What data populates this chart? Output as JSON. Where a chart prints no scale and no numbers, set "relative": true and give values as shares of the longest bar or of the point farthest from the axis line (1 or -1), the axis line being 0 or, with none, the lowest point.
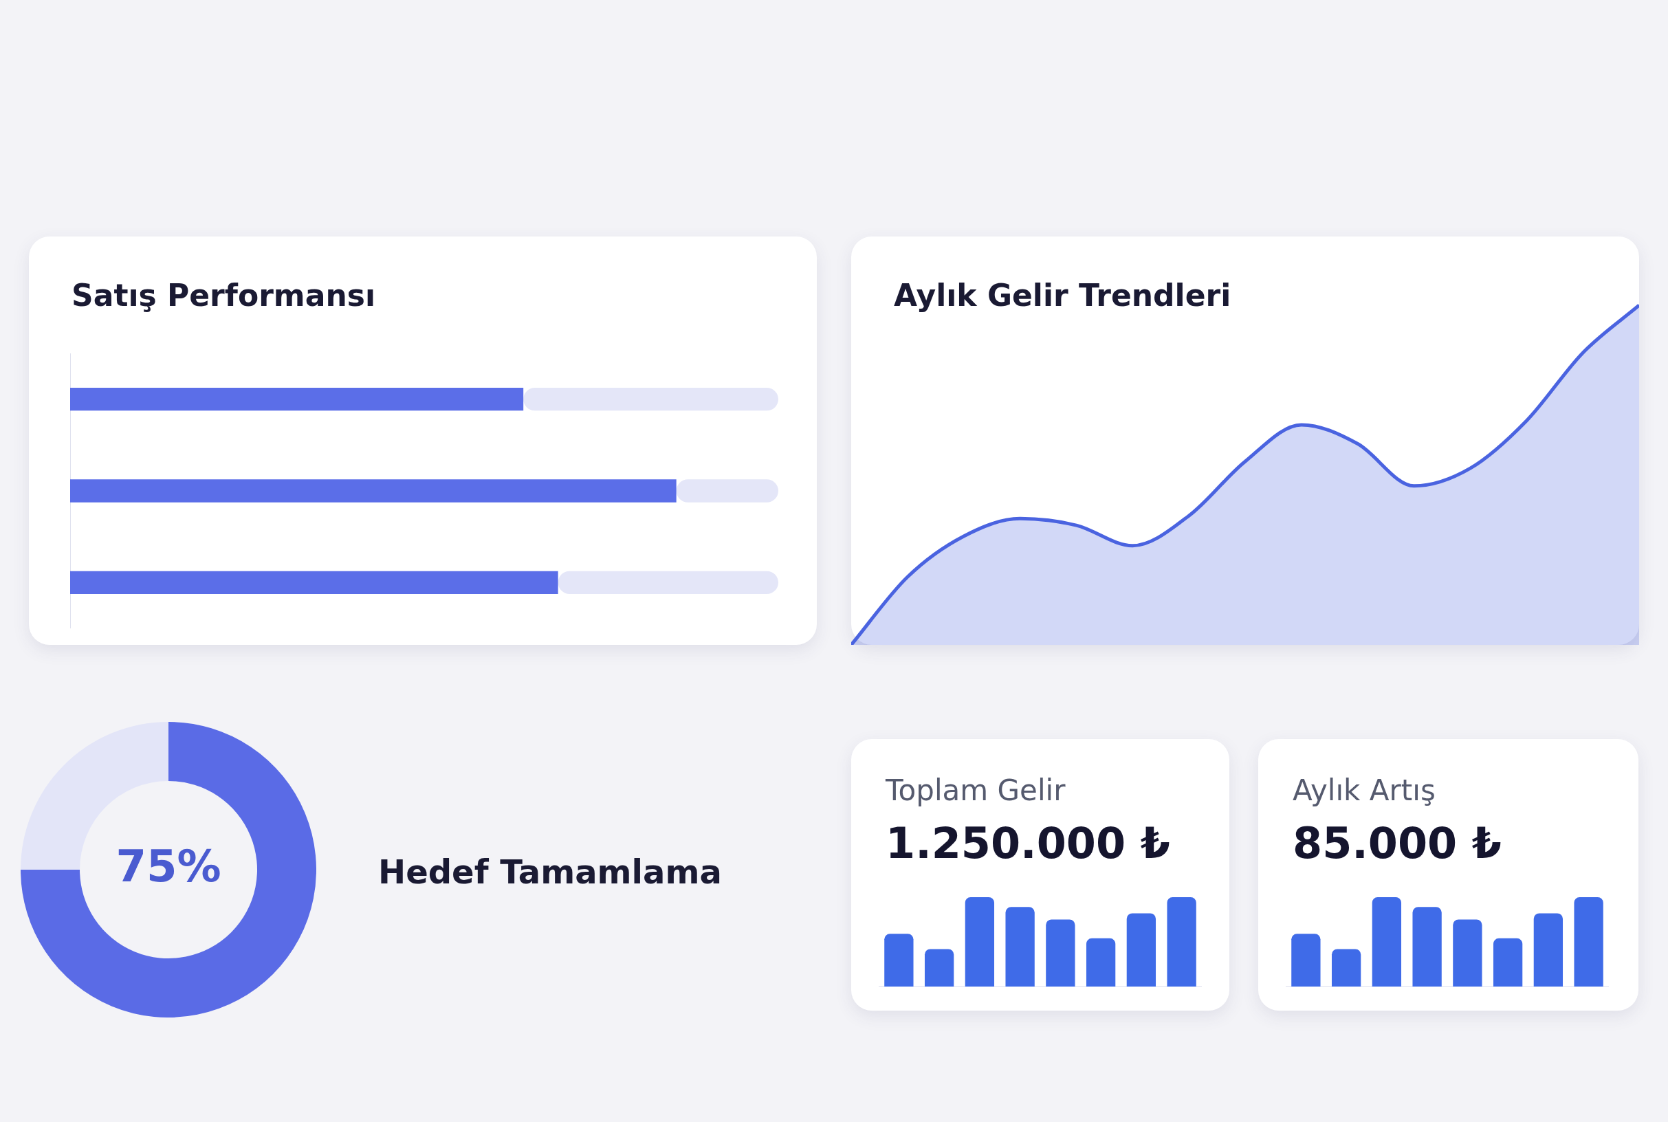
{
  "chart_data": [
    {
      "type": "bar",
      "title": "Satış Performansı",
      "orientation": "horizontal",
      "stacked": true,
      "relative": true,
      "categories": [
        null,
        null,
        null
      ],
      "series": [
        {
          "color": "#5b6ee8",
          "values": [
            0.64,
            0.856,
            0.689
          ]
        },
        {
          "color": "#e4e6f8",
          "values": [
            0.36,
            0.144,
            0.311
          ]
        }
      ]
    },
    {
      "type": "area",
      "title": "Aylık Gelir Trendleri",
      "relative": true,
      "categories": [
        null,
        null,
        null,
        null,
        null,
        null,
        null,
        null,
        null,
        null,
        null,
        null,
        null,
        null,
        null
      ],
      "series": [
        {
          "color": "#4a63e0",
          "values": [
            0,
            0.2,
            0.32,
            0.372,
            0.352,
            0.292,
            0.38,
            0.54,
            0.648,
            0.592,
            0.468,
            0.52,
            0.66,
            0.86,
            1
          ]
        }
      ]
    },
    {
      "type": "donut",
      "title": "Hedef Tamamlama",
      "categories": [
        null,
        null
      ],
      "values": [
        75,
        25
      ],
      "colors": [
        "#5a6be6",
        "#e3e5f8"
      ],
      "value_labels": [
        "75%",
        null
      ]
    },
    {
      "type": "bar",
      "title": "Toplam Gelir",
      "subtitle": "1.250.000 ₺",
      "relative": true,
      "categories": [
        null,
        null,
        null,
        null,
        null,
        null,
        null,
        null
      ],
      "values": [
        0.59,
        0.42,
        1,
        0.89,
        0.75,
        0.54,
        0.82,
        1
      ],
      "color": "#3f6be8"
    },
    {
      "type": "bar",
      "title": "Aylık Artış",
      "subtitle": "85.000 ₺",
      "relative": true,
      "categories": [
        null,
        null,
        null,
        null,
        null,
        null,
        null,
        null
      ],
      "values": [
        0.59,
        0.42,
        1,
        0.89,
        0.75,
        0.54,
        0.82,
        1
      ],
      "color": "#3f6be8"
    }
  ]
}
